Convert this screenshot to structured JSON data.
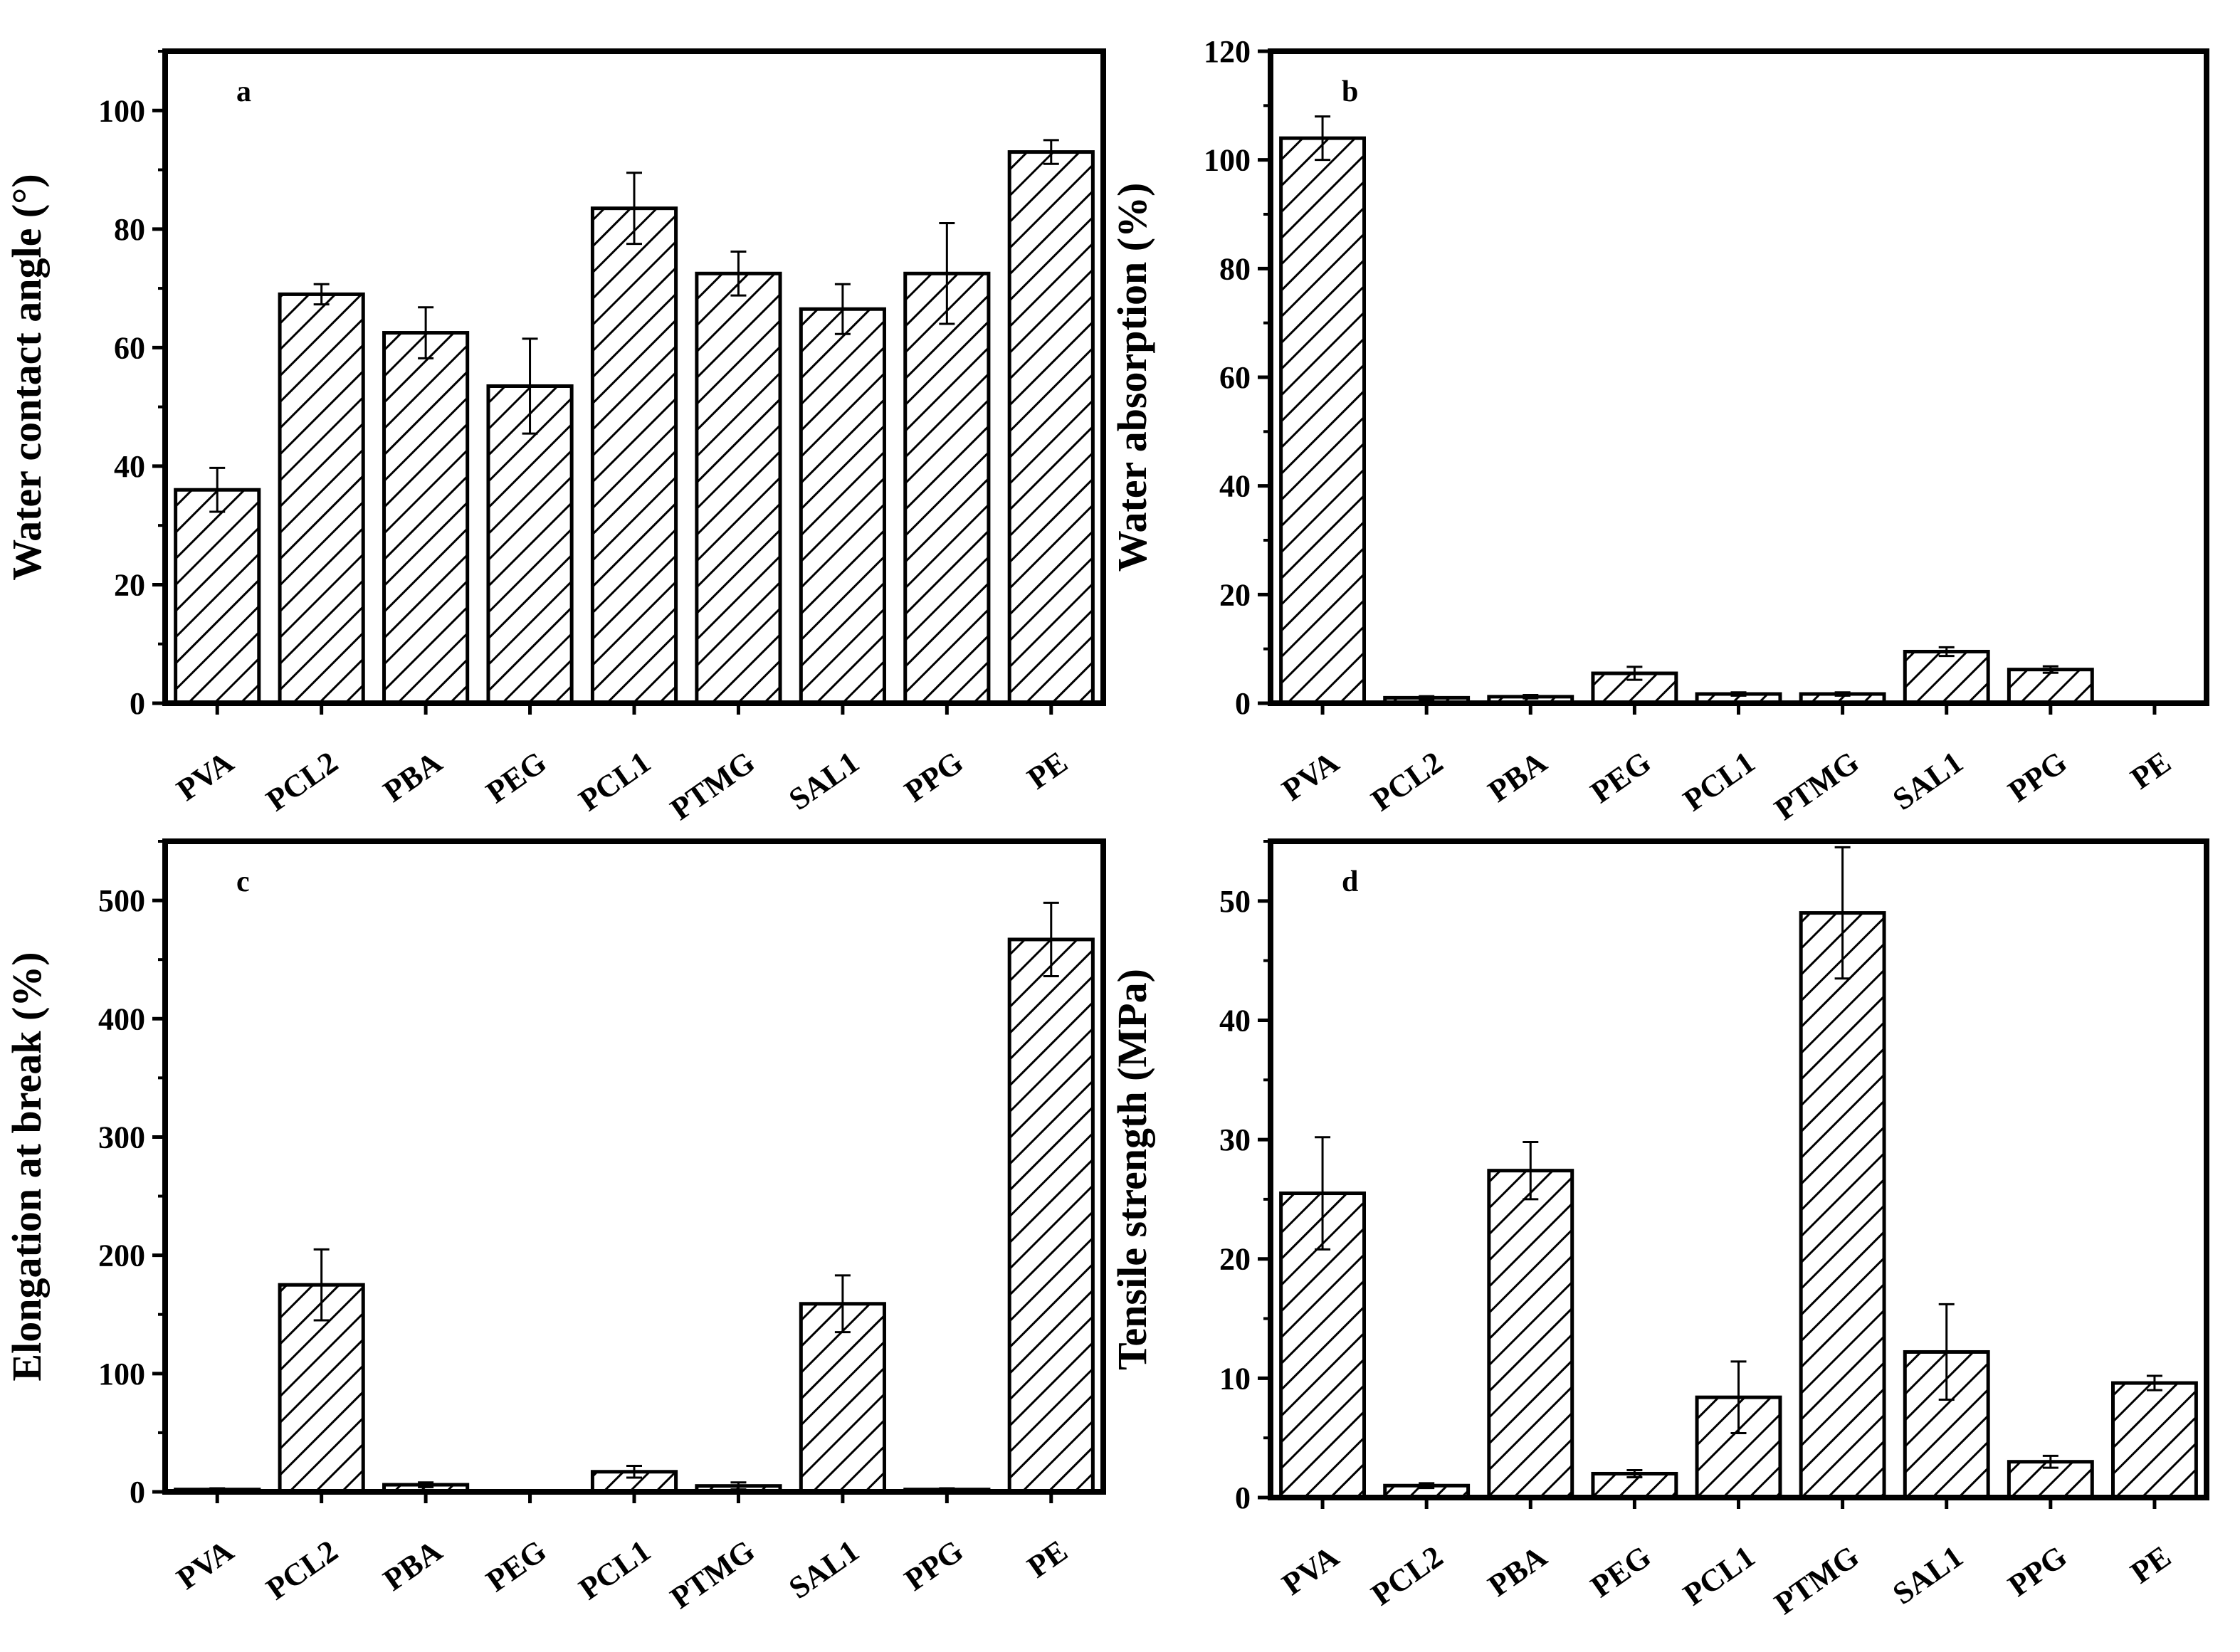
{
  "figure": {
    "background": "#ffffff",
    "bar_fill_pattern": "diagonal-hatch",
    "bar_stroke": "#000000"
  },
  "chart_data": [
    {
      "id": "a",
      "panel_label": "a",
      "type": "bar",
      "ylabel": "Water contact angle (°)",
      "ylim": [
        0,
        110
      ],
      "yticks": [
        0,
        20,
        40,
        60,
        80,
        100
      ],
      "categories": [
        "PVA",
        "PCL2",
        "PBA",
        "PEG",
        "PCL1",
        "PTMG",
        "SAL1",
        "PPG",
        "PE"
      ],
      "values": [
        36,
        69,
        62.5,
        53.5,
        83.5,
        72.5,
        66.5,
        72.5,
        93
      ],
      "errors": [
        3.7,
        1.7,
        4.3,
        8,
        6,
        3.7,
        4.2,
        8.5,
        2
      ]
    },
    {
      "id": "b",
      "panel_label": "b",
      "type": "bar",
      "ylabel": "Water absorption (%)",
      "ylim": [
        0,
        120
      ],
      "yticks": [
        0,
        20,
        40,
        60,
        80,
        100,
        120
      ],
      "categories": [
        "PVA",
        "PCL2",
        "PBA",
        "PEG",
        "PCL1",
        "PTMG",
        "SAL1",
        "PPG",
        "PE"
      ],
      "values": [
        104,
        1,
        1.2,
        5.5,
        1.7,
        1.7,
        9.5,
        6.2,
        0
      ],
      "errors": [
        4,
        0.3,
        0.3,
        1.2,
        0.3,
        0.3,
        0.8,
        0.6,
        0
      ]
    },
    {
      "id": "c",
      "panel_label": "c",
      "type": "bar",
      "ylabel": "Elongation at break (%)",
      "ylim": [
        0,
        550
      ],
      "yticks": [
        0,
        100,
        200,
        300,
        400,
        500
      ],
      "categories": [
        "PVA",
        "PCL2",
        "PBA",
        "PEG",
        "PCL1",
        "PTMG",
        "SAL1",
        "PPG",
        "PE"
      ],
      "values": [
        2,
        175,
        6,
        0,
        17,
        5,
        159,
        2,
        467
      ],
      "errors": [
        1,
        30,
        2,
        0,
        5,
        3,
        24,
        1,
        31
      ]
    },
    {
      "id": "d",
      "panel_label": "d",
      "type": "bar",
      "ylabel": "Tensile strength (MPa)",
      "ylim": [
        0,
        55
      ],
      "yticks": [
        0,
        10,
        20,
        30,
        40,
        50
      ],
      "categories": [
        "PVA",
        "PCL2",
        "PBA",
        "PEG",
        "PCL1",
        "PTMG",
        "SAL1",
        "PPG",
        "PE"
      ],
      "values": [
        25.5,
        1,
        27.4,
        2,
        8.4,
        49,
        12.2,
        3,
        9.6
      ],
      "errors": [
        4.7,
        0.2,
        2.4,
        0.3,
        3,
        5.5,
        4,
        0.5,
        0.6
      ]
    }
  ]
}
